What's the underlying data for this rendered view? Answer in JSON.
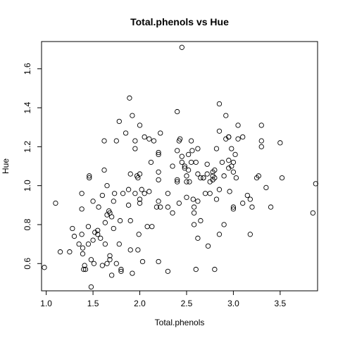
{
  "chart_data": {
    "type": "scatter",
    "title": "Total.phenols vs Hue",
    "xlabel": "Total.phenols",
    "ylabel": "Hue",
    "xlim": [
      0.95,
      3.9
    ],
    "ylim": [
      0.46,
      1.74
    ],
    "xticks": [
      1.0,
      1.5,
      2.0,
      2.5,
      3.0,
      3.5
    ],
    "xtick_labels": [
      "1.0",
      "1.5",
      "2.0",
      "2.5",
      "3.0",
      "3.5"
    ],
    "yticks": [
      0.6,
      0.8,
      1.0,
      1.2,
      1.4,
      1.6
    ],
    "ytick_labels": [
      "0.6",
      "0.8",
      "1.0",
      "1.2",
      "1.4",
      "1.6"
    ],
    "grid": false,
    "marker": "open-circle",
    "points": [
      [
        0.98,
        0.58
      ],
      [
        1.1,
        0.91
      ],
      [
        1.15,
        0.66
      ],
      [
        1.25,
        0.66
      ],
      [
        1.28,
        0.78
      ],
      [
        1.3,
        0.74
      ],
      [
        1.35,
        0.7
      ],
      [
        1.38,
        0.75
      ],
      [
        1.38,
        0.96
      ],
      [
        1.38,
        0.88
      ],
      [
        1.39,
        0.68
      ],
      [
        1.39,
        0.65
      ],
      [
        1.4,
        0.57
      ],
      [
        1.41,
        0.59
      ],
      [
        1.42,
        0.57
      ],
      [
        1.45,
        0.7
      ],
      [
        1.45,
        0.79
      ],
      [
        1.46,
        1.04
      ],
      [
        1.46,
        1.05
      ],
      [
        1.48,
        0.62
      ],
      [
        1.48,
        0.48
      ],
      [
        1.5,
        0.92
      ],
      [
        1.5,
        0.72
      ],
      [
        1.51,
        0.6
      ],
      [
        1.52,
        0.76
      ],
      [
        1.55,
        0.75
      ],
      [
        1.55,
        0.77
      ],
      [
        1.56,
        0.89
      ],
      [
        1.58,
        0.73
      ],
      [
        1.6,
        0.95
      ],
      [
        1.6,
        0.59
      ],
      [
        1.62,
        1.23
      ],
      [
        1.62,
        1.08
      ],
      [
        1.63,
        0.81
      ],
      [
        1.63,
        0.7
      ],
      [
        1.65,
        0.85
      ],
      [
        1.65,
        1.0
      ],
      [
        1.65,
        0.6
      ],
      [
        1.67,
        0.87
      ],
      [
        1.68,
        0.64
      ],
      [
        1.68,
        0.62
      ],
      [
        1.68,
        0.86
      ],
      [
        1.7,
        0.54
      ],
      [
        1.7,
        0.84
      ],
      [
        1.72,
        0.78
      ],
      [
        1.72,
        0.92
      ],
      [
        1.73,
        0.96
      ],
      [
        1.75,
        0.6
      ],
      [
        1.75,
        1.23
      ],
      [
        1.78,
        1.33
      ],
      [
        1.78,
        0.7
      ],
      [
        1.79,
        0.82
      ],
      [
        1.8,
        0.57
      ],
      [
        1.8,
        0.56
      ],
      [
        1.82,
        0.96
      ],
      [
        1.85,
        1.27
      ],
      [
        1.88,
        0.98
      ],
      [
        1.88,
        0.9
      ],
      [
        1.89,
        1.45
      ],
      [
        1.9,
        1.06
      ],
      [
        1.9,
        0.82
      ],
      [
        1.9,
        0.67
      ],
      [
        1.92,
        1.36
      ],
      [
        1.92,
        0.55
      ],
      [
        1.95,
        1.23
      ],
      [
        1.95,
        0.96
      ],
      [
        1.95,
        1.19
      ],
      [
        1.97,
        1.05
      ],
      [
        1.98,
        0.67
      ],
      [
        1.98,
        1.04
      ],
      [
        1.99,
        0.75
      ],
      [
        2.0,
        0.93
      ],
      [
        2.0,
        1.31
      ],
      [
        2.0,
        0.91
      ],
      [
        2.0,
        1.06
      ],
      [
        2.02,
        0.98
      ],
      [
        2.03,
        0.61
      ],
      [
        2.05,
        1.25
      ],
      [
        2.05,
        0.96
      ],
      [
        2.08,
        0.79
      ],
      [
        2.1,
        1.24
      ],
      [
        2.1,
        0.97
      ],
      [
        2.12,
        1.12
      ],
      [
        2.13,
        0.79
      ],
      [
        2.15,
        1.23
      ],
      [
        2.18,
        0.89
      ],
      [
        2.2,
        1.17
      ],
      [
        2.2,
        0.92
      ],
      [
        2.2,
        1.03
      ],
      [
        2.2,
        1.07
      ],
      [
        2.2,
        0.61
      ],
      [
        2.2,
        1.16
      ],
      [
        2.22,
        1.27
      ],
      [
        2.22,
        0.89
      ],
      [
        2.3,
        0.56
      ],
      [
        2.3,
        0.96
      ],
      [
        2.3,
        0.89
      ],
      [
        2.35,
        1.1
      ],
      [
        2.35,
        0.86
      ],
      [
        2.4,
        1.18
      ],
      [
        2.4,
        1.03
      ],
      [
        2.4,
        1.38
      ],
      [
        2.4,
        1.02
      ],
      [
        2.42,
        0.91
      ],
      [
        2.42,
        1.23
      ],
      [
        2.43,
        1.24
      ],
      [
        2.45,
        1.71
      ],
      [
        2.45,
        1.15
      ],
      [
        2.45,
        1.12
      ],
      [
        2.48,
        1.1
      ],
      [
        2.48,
        1.09
      ],
      [
        2.5,
        0.94
      ],
      [
        2.5,
        1.05
      ],
      [
        2.5,
        1.02
      ],
      [
        2.52,
        1.08
      ],
      [
        2.52,
        1.16
      ],
      [
        2.53,
        1.02
      ],
      [
        2.55,
        1.12
      ],
      [
        2.55,
        1.23
      ],
      [
        2.56,
        1.18
      ],
      [
        2.57,
        0.93
      ],
      [
        2.58,
        0.89
      ],
      [
        2.58,
        0.8
      ],
      [
        2.58,
        0.86
      ],
      [
        2.6,
        0.57
      ],
      [
        2.6,
        1.12
      ],
      [
        2.62,
        0.92
      ],
      [
        2.62,
        0.73
      ],
      [
        2.62,
        1.19
      ],
      [
        2.62,
        1.06
      ],
      [
        2.65,
        1.04
      ],
      [
        2.65,
        0.82
      ],
      [
        2.68,
        1.04
      ],
      [
        2.68,
        1.04
      ],
      [
        2.7,
        0.96
      ],
      [
        2.72,
        1.11
      ],
      [
        2.72,
        1.06
      ],
      [
        2.73,
        0.69
      ],
      [
        2.75,
        0.96
      ],
      [
        2.75,
        1.02
      ],
      [
        2.78,
        1.07
      ],
      [
        2.78,
        1.05
      ],
      [
        2.78,
        1.03
      ],
      [
        2.8,
        1.04
      ],
      [
        2.8,
        1.08
      ],
      [
        2.8,
        0.57
      ],
      [
        2.82,
        1.19
      ],
      [
        2.82,
        0.93
      ],
      [
        2.85,
        1.28
      ],
      [
        2.85,
        1.42
      ],
      [
        2.85,
        0.75
      ],
      [
        2.85,
        0.98
      ],
      [
        2.88,
        1.12
      ],
      [
        2.9,
        0.8
      ],
      [
        2.9,
        1.05
      ],
      [
        2.92,
        1.36
      ],
      [
        2.92,
        1.24
      ],
      [
        2.95,
        1.25
      ],
      [
        2.95,
        1.25
      ],
      [
        2.95,
        1.09
      ],
      [
        2.95,
        1.13
      ],
      [
        2.96,
        0.97
      ],
      [
        2.98,
        1.1
      ],
      [
        2.98,
        1.19
      ],
      [
        3.0,
        0.89
      ],
      [
        3.0,
        0.88
      ],
      [
        3.0,
        1.12
      ],
      [
        3.0,
        1.07
      ],
      [
        3.02,
        1.16
      ],
      [
        3.03,
        1.04
      ],
      [
        3.05,
        1.31
      ],
      [
        3.05,
        1.24
      ],
      [
        3.1,
        0.91
      ],
      [
        3.1,
        1.25
      ],
      [
        3.15,
        0.95
      ],
      [
        3.18,
        0.75
      ],
      [
        3.18,
        0.93
      ],
      [
        3.2,
        0.89
      ],
      [
        3.25,
        1.04
      ],
      [
        3.27,
        1.05
      ],
      [
        3.3,
        1.31
      ],
      [
        3.3,
        1.23
      ],
      [
        3.3,
        1.2
      ],
      [
        3.35,
        0.99
      ],
      [
        3.4,
        0.89
      ],
      [
        3.5,
        1.22
      ],
      [
        3.52,
        1.04
      ],
      [
        3.85,
        0.86
      ],
      [
        3.88,
        1.01
      ]
    ]
  }
}
